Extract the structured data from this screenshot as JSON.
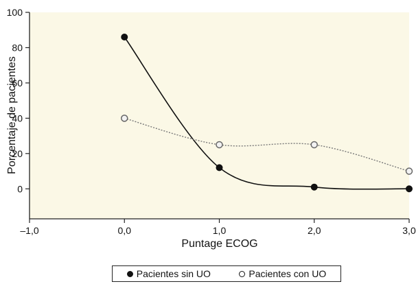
{
  "chart_data": {
    "type": "line",
    "xlabel": "Puntage ECOG",
    "ylabel": "Porcentaje de pacientes",
    "xlim": [
      -1.0,
      3.0
    ],
    "ylim": [
      -17,
      100
    ],
    "xticks": [
      "–1,0",
      "0,0",
      "1,0",
      "2,0",
      "3,0"
    ],
    "yticks": [
      "0",
      "20",
      "40",
      "60",
      "80",
      "100"
    ],
    "grid": false,
    "legend_position": "bottom",
    "series": [
      {
        "name": "Pacientes sin UO",
        "x": [
          0,
          1,
          2,
          3
        ],
        "values": [
          86,
          12,
          1,
          0
        ],
        "marker": "filled-circle",
        "line": "solid",
        "color": "#111111"
      },
      {
        "name": "Pacientes con UO",
        "x": [
          0,
          1,
          2,
          3
        ],
        "values": [
          40,
          25,
          25,
          10
        ],
        "marker": "open-circle",
        "line": "dotted",
        "color": "#777777"
      }
    ],
    "background_color": "#fbf8e6"
  }
}
